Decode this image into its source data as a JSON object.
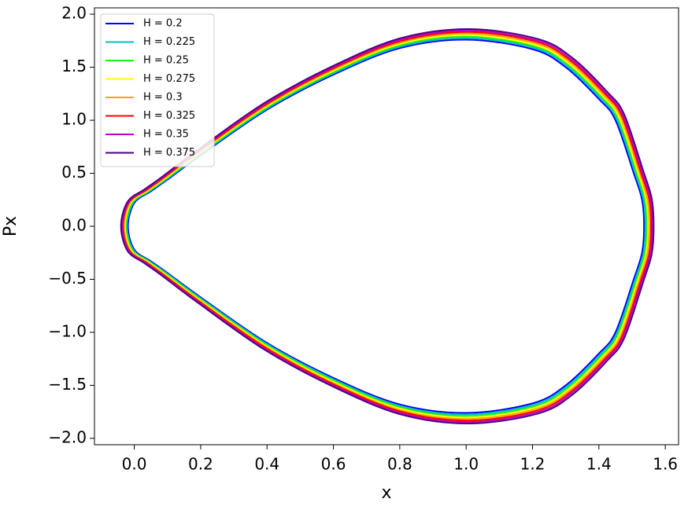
{
  "chart_data": {
    "type": "line",
    "x_label": "x",
    "y_label": "Px",
    "xlim": [
      -0.12,
      1.64
    ],
    "ylim": [
      -2.06,
      2.06
    ],
    "xticks": [
      {
        "value": 0,
        "label": "0.0"
      },
      0.2,
      0.4,
      0.6,
      0.8,
      {
        "value": 1,
        "label": "1.0"
      },
      1.2,
      1.4,
      1.6
    ],
    "yticks": [
      {
        "value": -2,
        "label": "−2.0"
      },
      {
        "value": -1.5,
        "label": "−1.5"
      },
      {
        "value": -1,
        "label": "−1.0"
      },
      {
        "value": -0.5,
        "label": "−0.5"
      },
      {
        "value": 0,
        "label": "0.0"
      },
      0.5,
      {
        "value": 1,
        "label": "1.0"
      },
      1.5,
      {
        "value": 2,
        "label": "2.0"
      }
    ],
    "grid": false,
    "legend": "upper left",
    "series": [
      {
        "name": "H = 0.2",
        "color": "#0000ff",
        "x": [
          -0.019,
          0,
          0.05,
          0.1,
          0.2,
          0.4,
          0.6,
          0.8,
          1.0,
          1.2,
          1.3,
          1.4,
          1.45,
          1.505,
          1.53,
          1.536,
          1.53,
          1.505,
          1.45,
          1.4,
          1.3,
          1.2,
          1.0,
          0.8,
          0.6,
          0.4,
          0.2,
          0.1,
          0.05,
          0
        ],
        "values": [
          0,
          0.22,
          0.33,
          0.44,
          0.67,
          1.1,
          1.43,
          1.68,
          1.76,
          1.67,
          1.5,
          1.2,
          1.0,
          0.5,
          0.25,
          0,
          -0.25,
          -0.5,
          -1.0,
          -1.2,
          -1.5,
          -1.67,
          -1.76,
          -1.68,
          -1.43,
          -1.1,
          -0.67,
          -0.44,
          -0.33,
          -0.22
        ]
      },
      {
        "name": "H = 0.225",
        "color": "#00bfbf",
        "x": [
          -0.022,
          -0.003,
          0.047,
          0.098,
          0.198,
          0.399,
          0.6,
          0.801,
          1.002,
          1.203,
          1.303,
          1.404,
          1.454,
          1.509,
          1.534,
          1.54,
          1.534,
          1.509,
          1.454,
          1.404,
          1.303,
          1.203,
          1.002,
          0.801,
          0.6,
          0.399,
          0.198,
          0.098,
          0.047,
          -0.003
        ],
        "values": [
          0,
          0.222,
          0.333,
          0.444,
          0.675,
          1.109,
          1.442,
          1.694,
          1.774,
          1.684,
          1.512,
          1.21,
          1.008,
          0.504,
          0.252,
          0,
          -0.252,
          -0.504,
          -1.008,
          -1.21,
          -1.512,
          -1.684,
          -1.774,
          -1.694,
          -1.442,
          -1.109,
          -0.675,
          -0.444,
          -0.333,
          -0.222
        ]
      },
      {
        "name": "H = 0.25",
        "color": "#1cf01c",
        "x": [
          -0.025,
          -0.006,
          0.045,
          0.095,
          0.196,
          0.398,
          0.6,
          0.801,
          1.003,
          1.205,
          1.306,
          1.407,
          1.457,
          1.513,
          1.538,
          1.544,
          1.538,
          1.513,
          1.457,
          1.407,
          1.306,
          1.205,
          1.003,
          0.801,
          0.6,
          0.398,
          0.196,
          0.095,
          0.045,
          -0.006
        ],
        "values": [
          0,
          0.224,
          0.335,
          0.447,
          0.681,
          1.118,
          1.453,
          1.707,
          1.789,
          1.697,
          1.524,
          1.22,
          1.016,
          0.508,
          0.254,
          0,
          -0.254,
          -0.508,
          -1.016,
          -1.22,
          -1.524,
          -1.697,
          -1.789,
          -1.707,
          -1.453,
          -1.118,
          -0.681,
          -0.447,
          -0.335,
          -0.224
        ]
      },
      {
        "name": "H = 0.275",
        "color": "#ffff00",
        "x": [
          -0.028,
          -0.009,
          0.042,
          0.093,
          0.194,
          0.397,
          0.599,
          0.802,
          1.005,
          1.208,
          1.309,
          1.411,
          1.461,
          1.517,
          1.542,
          1.548,
          1.542,
          1.517,
          1.461,
          1.411,
          1.309,
          1.208,
          1.005,
          0.802,
          0.599,
          0.397,
          0.194,
          0.093,
          0.042,
          -0.009
        ],
        "values": [
          0,
          0.225,
          0.338,
          0.451,
          0.686,
          1.127,
          1.465,
          1.721,
          1.803,
          1.711,
          1.537,
          1.229,
          1.024,
          0.512,
          0.256,
          0,
          -0.256,
          -0.512,
          -1.024,
          -1.229,
          -1.537,
          -1.711,
          -1.803,
          -1.721,
          -1.465,
          -1.127,
          -0.686,
          -0.451,
          -0.338,
          -0.225
        ]
      },
      {
        "name": "H = 0.3",
        "color": "#ffa500",
        "x": [
          -0.031,
          -0.012,
          0.039,
          0.09,
          0.192,
          0.396,
          0.599,
          0.803,
          1.007,
          1.21,
          1.312,
          1.414,
          1.465,
          1.521,
          1.546,
          1.552,
          1.546,
          1.521,
          1.465,
          1.414,
          1.312,
          1.21,
          1.007,
          0.803,
          0.599,
          0.396,
          0.192,
          0.09,
          0.039,
          -0.012
        ],
        "values": [
          0,
          0.227,
          0.341,
          0.454,
          0.692,
          1.136,
          1.477,
          1.735,
          1.817,
          1.724,
          1.549,
          1.239,
          1.033,
          0.516,
          0.258,
          0,
          -0.258,
          -0.516,
          -1.033,
          -1.239,
          -1.549,
          -1.724,
          -1.817,
          -1.735,
          -1.477,
          -1.136,
          -0.692,
          -0.454,
          -0.341,
          -0.227
        ]
      },
      {
        "name": "H = 0.325",
        "color": "#ff0000",
        "x": [
          -0.034,
          -0.015,
          0.037,
          0.088,
          0.19,
          0.395,
          0.599,
          0.804,
          1.009,
          1.213,
          1.315,
          1.418,
          1.469,
          1.525,
          1.551,
          1.557,
          1.551,
          1.525,
          1.469,
          1.418,
          1.315,
          1.213,
          1.009,
          0.804,
          0.599,
          0.395,
          0.19,
          0.088,
          0.037,
          -0.015
        ],
        "values": [
          0,
          0.229,
          0.343,
          0.458,
          0.697,
          1.145,
          1.488,
          1.748,
          1.832,
          1.738,
          1.561,
          1.249,
          1.041,
          0.52,
          0.26,
          0,
          -0.26,
          -0.52,
          -1.041,
          -1.249,
          -1.561,
          -1.738,
          -1.832,
          -1.748,
          -1.488,
          -1.145,
          -0.697,
          -0.458,
          -0.343,
          -0.229
        ]
      },
      {
        "name": "H = 0.35",
        "color": "#bf00bf",
        "x": [
          -0.037,
          -0.017,
          0.034,
          0.085,
          0.188,
          0.393,
          0.599,
          0.804,
          1.01,
          1.216,
          1.318,
          1.421,
          1.472,
          1.529,
          1.555,
          1.561,
          1.555,
          1.529,
          1.472,
          1.421,
          1.318,
          1.216,
          1.01,
          0.804,
          0.599,
          0.393,
          0.188,
          0.085,
          0.034,
          -0.017
        ],
        "values": [
          0,
          0.231,
          0.346,
          0.461,
          0.703,
          1.154,
          1.5,
          1.762,
          1.846,
          1.751,
          1.573,
          1.259,
          1.049,
          0.524,
          0.262,
          0,
          -0.262,
          -0.524,
          -1.049,
          -1.259,
          -1.573,
          -1.751,
          -1.846,
          -1.762,
          -1.5,
          -1.154,
          -0.703,
          -0.461,
          -0.346,
          -0.231
        ]
      },
      {
        "name": "H = 0.375",
        "color": "#4b0082",
        "x": [
          -0.04,
          -0.02,
          0.031,
          0.083,
          0.186,
          0.392,
          0.599,
          0.805,
          1.012,
          1.218,
          1.321,
          1.425,
          1.476,
          1.533,
          1.559,
          1.565,
          1.559,
          1.533,
          1.476,
          1.425,
          1.321,
          1.218,
          1.012,
          0.805,
          0.599,
          0.392,
          0.186,
          0.083,
          0.031,
          -0.02
        ],
        "values": [
          0,
          0.233,
          0.349,
          0.465,
          0.708,
          1.163,
          1.512,
          1.776,
          1.86,
          1.765,
          1.586,
          1.268,
          1.057,
          0.529,
          0.264,
          0,
          -0.264,
          -0.529,
          -1.057,
          -1.268,
          -1.586,
          -1.765,
          -1.86,
          -1.776,
          -1.512,
          -1.163,
          -0.708,
          -0.465,
          -0.349,
          -0.233
        ]
      }
    ]
  }
}
